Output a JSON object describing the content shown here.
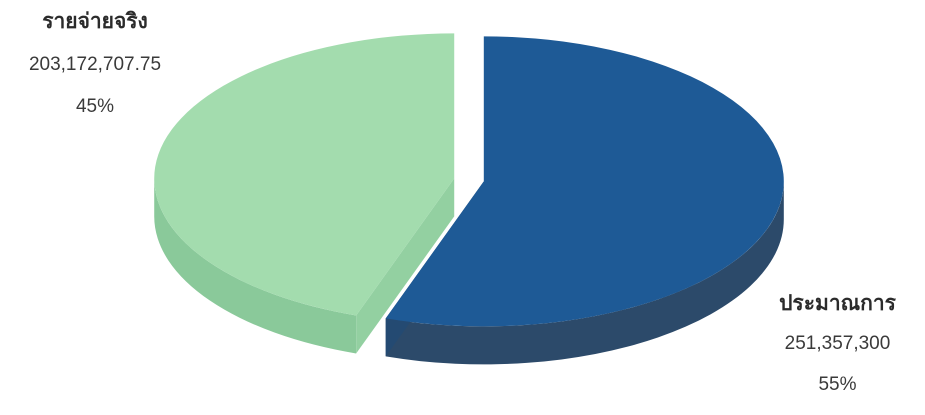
{
  "chart_data": {
    "type": "pie",
    "style": "3d-exploded",
    "categories": [
      "รายจ่ายจริง",
      "ประมาณการ"
    ],
    "values": [
      203172707.75,
      251357300
    ],
    "value_labels": [
      "203,172,707.75",
      "251,357,300"
    ],
    "percent_labels": [
      "45%",
      "55%"
    ],
    "percents": [
      45,
      55
    ],
    "colors": [
      "#a3dcae",
      "#1e5a96"
    ],
    "side_colors": [
      "#8ac99a",
      "#2c4a6a"
    ],
    "legend": "none"
  },
  "labels": {
    "actual": {
      "name": "รายจ่ายจริง",
      "value": "203,172,707.75",
      "percent": "45%"
    },
    "budget": {
      "name": "ประมาณการ",
      "value": "251,357,300",
      "percent": "55%"
    }
  }
}
